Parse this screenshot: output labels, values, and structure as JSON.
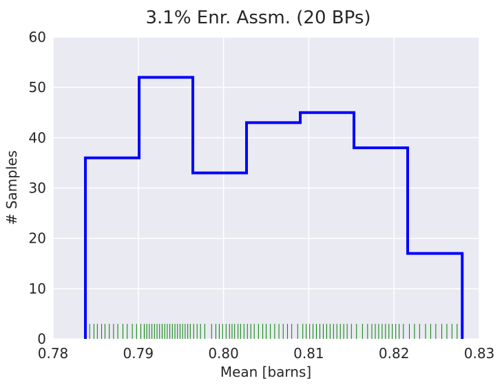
{
  "chart_data": {
    "type": "histogram",
    "title": "3.1% Enr. Assm. (20 BPs)",
    "xlabel": "Mean [barns]",
    "ylabel": "# Samples",
    "xlim": [
      0.78,
      0.83
    ],
    "ylim": [
      0,
      60
    ],
    "xticks": [
      "0.78",
      "0.79",
      "0.80",
      "0.81",
      "0.82",
      "0.83"
    ],
    "yticks": [
      "0",
      "10",
      "20",
      "30",
      "40",
      "50",
      "60"
    ],
    "grid": true,
    "bin_edges": [
      0.7838,
      0.7901,
      0.7964,
      0.8027,
      0.809,
      0.8153,
      0.8216,
      0.828
    ],
    "counts": [
      36,
      52,
      33,
      43,
      45,
      38,
      17
    ],
    "step_color": "#0000ff",
    "rug_color": "#008000",
    "rug": [
      0.7839,
      0.7843,
      0.7848,
      0.7852,
      0.7857,
      0.7861,
      0.7866,
      0.7871,
      0.7876,
      0.7882,
      0.7887,
      0.7893,
      0.7898,
      0.7903,
      0.7907,
      0.791,
      0.7913,
      0.7916,
      0.7919,
      0.7922,
      0.7925,
      0.7928,
      0.7931,
      0.7934,
      0.7937,
      0.794,
      0.7943,
      0.7946,
      0.7949,
      0.7952,
      0.7955,
      0.7958,
      0.7961,
      0.7965,
      0.7969,
      0.7973,
      0.7978,
      0.7986,
      0.7991,
      0.7995,
      0.7999,
      0.8003,
      0.8007,
      0.801,
      0.8013,
      0.8017,
      0.802,
      0.8024,
      0.8028,
      0.8032,
      0.8036,
      0.8041,
      0.8046,
      0.805,
      0.8055,
      0.806,
      0.8065,
      0.807,
      0.8075,
      0.808,
      0.8087,
      0.8093,
      0.8097,
      0.8101,
      0.8105,
      0.8109,
      0.8113,
      0.8117,
      0.8121,
      0.8125,
      0.8129,
      0.8133,
      0.8137,
      0.8141,
      0.8145,
      0.815,
      0.8156,
      0.8163,
      0.8169,
      0.8174,
      0.8178,
      0.8182,
      0.8186,
      0.819,
      0.8194,
      0.8198,
      0.8202,
      0.8206,
      0.8211,
      0.8218,
      0.8224,
      0.823,
      0.8237,
      0.8243,
      0.8249,
      0.8256,
      0.8262,
      0.8268,
      0.8274,
      0.8279
    ]
  }
}
